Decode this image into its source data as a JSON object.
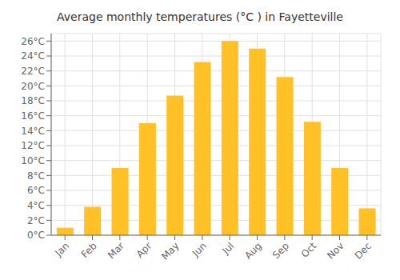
{
  "chart_data": {
    "type": "bar",
    "title": "Average monthly temperatures (°C ) in Fayetteville",
    "categories": [
      "Jan",
      "Feb",
      "Mar",
      "Apr",
      "May",
      "Jun",
      "Jul",
      "Aug",
      "Sep",
      "Oct",
      "Nov",
      "Dec"
    ],
    "values": [
      1.0,
      3.8,
      9.0,
      15.0,
      18.7,
      23.2,
      26.0,
      25.0,
      21.2,
      15.2,
      9.0,
      3.6
    ],
    "color": "#FFC125",
    "ylim": [
      0,
      27
    ],
    "yticks": [
      {
        "value": 0,
        "label": "0°C"
      },
      {
        "value": 2,
        "label": "2°C"
      },
      {
        "value": 4,
        "label": "4°C"
      },
      {
        "value": 6,
        "label": "6°C"
      },
      {
        "value": 8,
        "label": "8°C"
      },
      {
        "value": 10,
        "label": "10°C"
      },
      {
        "value": 12,
        "label": "12°C"
      },
      {
        "value": 14,
        "label": "14°C"
      },
      {
        "value": 16,
        "label": "16°C"
      },
      {
        "value": 18,
        "label": "18°C"
      },
      {
        "value": 20,
        "label": "20°C"
      },
      {
        "value": 22,
        "label": "22°C"
      },
      {
        "value": 24,
        "label": "24°C"
      },
      {
        "value": 26,
        "label": "26°C"
      }
    ],
    "grid": true
  }
}
